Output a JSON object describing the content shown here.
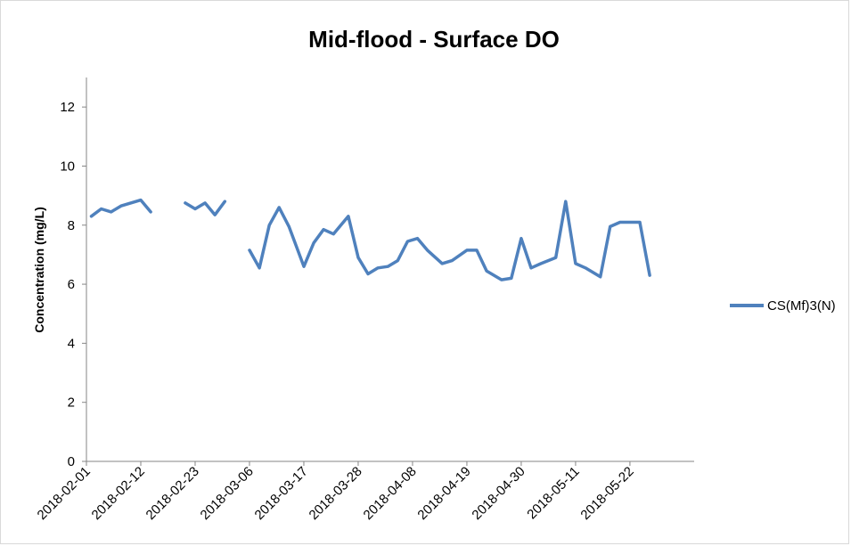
{
  "chart_data": {
    "type": "line",
    "title": "Mid-flood - Surface DO",
    "xlabel": "",
    "ylabel": "Concentration (mg/L)",
    "ylim": [
      0,
      13
    ],
    "yticks": [
      0,
      2,
      4,
      6,
      8,
      10,
      12
    ],
    "xlim": [
      "2018-02-01",
      "2018-06-04"
    ],
    "xticks": [
      "2018-02-01",
      "2018-02-12",
      "2018-02-23",
      "2018-03-06",
      "2018-03-17",
      "2018-03-28",
      "2018-04-08",
      "2018-04-19",
      "2018-04-30",
      "2018-05-11",
      "2018-05-22"
    ],
    "grid": false,
    "legend_position": "right",
    "series": [
      {
        "name": "CS(Mf)3(N)",
        "color": "#4F81BD",
        "points": [
          [
            "2018-02-02",
            8.3
          ],
          [
            "2018-02-04",
            8.55
          ],
          [
            "2018-02-06",
            8.45
          ],
          [
            "2018-02-08",
            8.65
          ],
          [
            "2018-02-12",
            8.85
          ],
          [
            "2018-02-14",
            8.45
          ],
          null,
          [
            "2018-02-21",
            8.75
          ],
          [
            "2018-02-23",
            8.55
          ],
          [
            "2018-02-25",
            8.75
          ],
          [
            "2018-02-27",
            8.35
          ],
          [
            "2018-03-01",
            8.8
          ],
          null,
          [
            "2018-03-06",
            7.15
          ],
          [
            "2018-03-08",
            6.55
          ],
          [
            "2018-03-10",
            8.0
          ],
          [
            "2018-03-12",
            8.6
          ],
          [
            "2018-03-14",
            7.95
          ],
          [
            "2018-03-17",
            6.6
          ],
          [
            "2018-03-19",
            7.4
          ],
          [
            "2018-03-21",
            7.85
          ],
          [
            "2018-03-23",
            7.7
          ],
          [
            "2018-03-26",
            8.3
          ],
          [
            "2018-03-28",
            6.9
          ],
          [
            "2018-03-30",
            6.35
          ],
          [
            "2018-04-01",
            6.55
          ],
          [
            "2018-04-03",
            6.6
          ],
          [
            "2018-04-05",
            6.8
          ],
          [
            "2018-04-07",
            7.45
          ],
          [
            "2018-04-09",
            7.55
          ],
          [
            "2018-04-11",
            7.15
          ],
          [
            "2018-04-14",
            6.7
          ],
          [
            "2018-04-16",
            6.8
          ],
          [
            "2018-04-19",
            7.15
          ],
          [
            "2018-04-21",
            7.15
          ],
          [
            "2018-04-23",
            6.45
          ],
          [
            "2018-04-26",
            6.15
          ],
          [
            "2018-04-28",
            6.2
          ],
          [
            "2018-04-30",
            7.55
          ],
          [
            "2018-05-02",
            6.55
          ],
          [
            "2018-05-04",
            6.7
          ],
          [
            "2018-05-07",
            6.9
          ],
          [
            "2018-05-09",
            8.8
          ],
          [
            "2018-05-11",
            6.7
          ],
          [
            "2018-05-13",
            6.55
          ],
          [
            "2018-05-16",
            6.25
          ],
          [
            "2018-05-18",
            7.95
          ],
          [
            "2018-05-20",
            8.1
          ],
          [
            "2018-05-22",
            8.1
          ],
          [
            "2018-05-24",
            8.1
          ],
          [
            "2018-05-26",
            6.3
          ]
        ]
      }
    ]
  }
}
